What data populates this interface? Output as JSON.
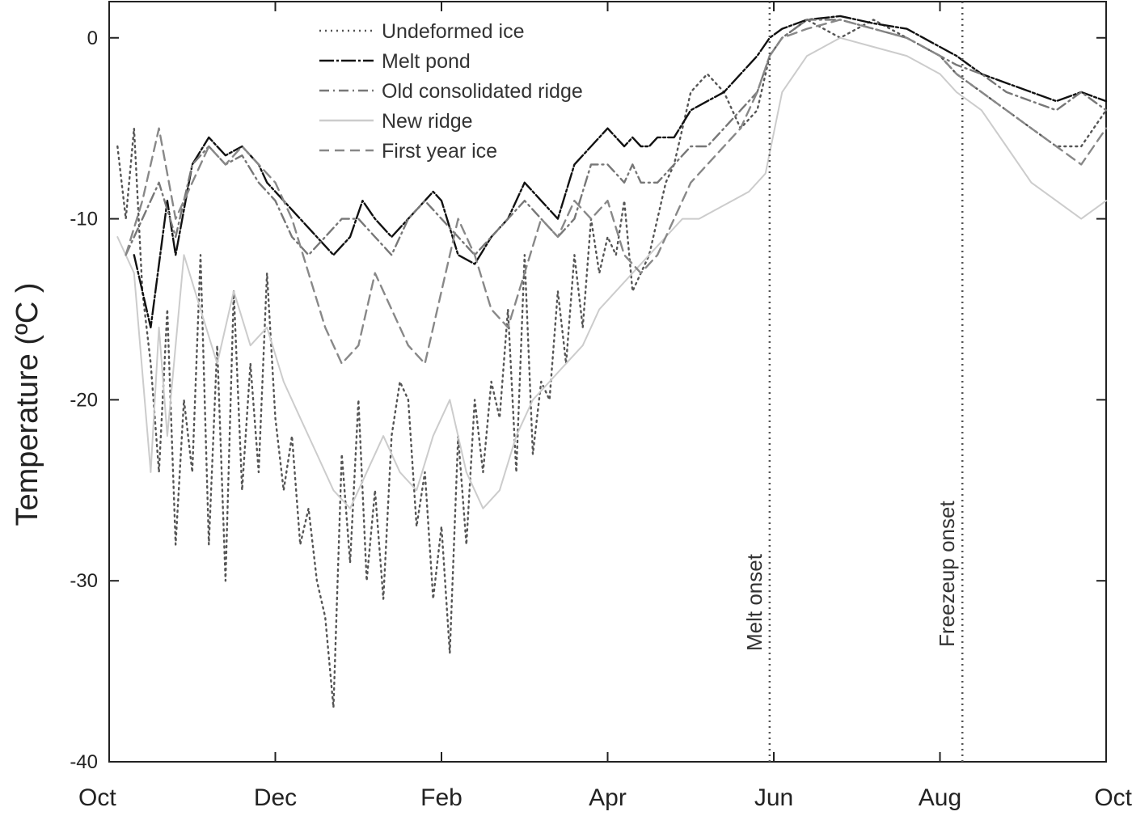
{
  "chart_data": {
    "type": "line",
    "title": "",
    "xlabel": "",
    "ylabel": "Temperature (ºC )",
    "ylim": [
      -40,
      2
    ],
    "xlim": [
      "Oct",
      "Oct"
    ],
    "x_ticks": [
      "Oct",
      "Dec",
      "Feb",
      "Apr",
      "Jun",
      "Aug",
      "Oct"
    ],
    "y_ticks": [
      0,
      -10,
      -20,
      -30,
      -40
    ],
    "x_unit": "months since start of October",
    "legend_position": "top-center",
    "grid": false,
    "annotations": [
      {
        "text": "Melt onset",
        "x": 7.95,
        "line_style": "dotted"
      },
      {
        "text": "Freezeup onset",
        "x": 10.27,
        "line_style": "dotted"
      }
    ],
    "series": [
      {
        "name": "Undeformed  ice",
        "style": "dotted",
        "color": "#555555",
        "x": [
          0.1,
          0.2,
          0.3,
          0.4,
          0.5,
          0.6,
          0.7,
          0.8,
          0.9,
          1.0,
          1.1,
          1.2,
          1.3,
          1.4,
          1.5,
          1.6,
          1.7,
          1.8,
          1.9,
          2.0,
          2.1,
          2.2,
          2.3,
          2.4,
          2.5,
          2.6,
          2.7,
          2.8,
          2.9,
          3.0,
          3.1,
          3.2,
          3.3,
          3.4,
          3.5,
          3.6,
          3.7,
          3.8,
          3.9,
          4.0,
          4.1,
          4.2,
          4.3,
          4.4,
          4.5,
          4.6,
          4.7,
          4.8,
          4.9,
          5.0,
          5.1,
          5.2,
          5.3,
          5.4,
          5.5,
          5.6,
          5.7,
          5.8,
          5.9,
          6.0,
          6.1,
          6.2,
          6.3,
          6.4,
          6.5,
          6.6,
          6.7,
          6.8,
          6.9,
          7.0,
          7.2,
          7.4,
          7.6,
          7.8,
          7.95,
          8.1,
          8.4,
          8.8,
          9.2,
          9.6,
          10.0,
          10.2,
          10.5,
          10.8,
          11.1,
          11.4,
          11.7,
          12.0
        ],
        "y": [
          -6,
          -10,
          -5,
          -14,
          -18,
          -24,
          -15,
          -28,
          -20,
          -24,
          -12,
          -28,
          -17,
          -30,
          -14,
          -25,
          -18,
          -24,
          -13,
          -21,
          -25,
          -22,
          -28,
          -26,
          -30,
          -32,
          -37,
          -23,
          -29,
          -20,
          -30,
          -25,
          -31,
          -22,
          -19,
          -20,
          -27,
          -24,
          -31,
          -27,
          -34,
          -22,
          -28,
          -20,
          -24,
          -19,
          -21,
          -15,
          -24,
          -12,
          -23,
          -19,
          -20,
          -14,
          -18,
          -12,
          -16,
          -10,
          -13,
          -11,
          -12,
          -9,
          -14,
          -13,
          -12,
          -10,
          -8,
          -7,
          -5,
          -3,
          -2,
          -3,
          -5,
          -4,
          -1,
          0,
          1,
          0,
          1,
          0,
          -1,
          -2,
          -3,
          -4,
          -5,
          -6,
          -6,
          -4
        ]
      },
      {
        "name": "Melt pond",
        "style": "solid-dash-dot",
        "color": "#111111",
        "x": [
          0.3,
          0.5,
          0.7,
          0.8,
          1.0,
          1.2,
          1.4,
          1.6,
          1.8,
          1.9,
          2.1,
          2.3,
          2.5,
          2.7,
          2.9,
          3.05,
          3.2,
          3.4,
          3.6,
          3.8,
          3.9,
          4.0,
          4.2,
          4.4,
          4.6,
          4.8,
          5.0,
          5.2,
          5.4,
          5.6,
          5.8,
          6.0,
          6.2,
          6.3,
          6.4,
          6.5,
          6.6,
          6.8,
          7.0,
          7.2,
          7.4,
          7.6,
          7.8,
          7.95,
          8.1,
          8.4,
          8.8,
          9.2,
          9.6,
          10.0,
          10.2,
          10.5,
          10.8,
          11.1,
          11.4,
          11.7,
          12.0
        ],
        "y": [
          -12,
          -16,
          -9,
          -12,
          -7,
          -5.5,
          -6.5,
          -6,
          -7,
          -8,
          -9,
          -10,
          -11,
          -12,
          -11,
          -9,
          -10,
          -11,
          -10,
          -9,
          -8.5,
          -9,
          -12,
          -12.5,
          -11,
          -10,
          -8,
          -9,
          -10,
          -7,
          -6,
          -5,
          -6,
          -5.5,
          -6,
          -6,
          -5.5,
          -5.5,
          -4,
          -3.5,
          -3,
          -2,
          -1,
          0,
          0.5,
          1,
          1.2,
          0.8,
          0.5,
          -0.5,
          -1,
          -2,
          -2.5,
          -3,
          -3.5,
          -3,
          -3.5
        ]
      },
      {
        "name": "Old consolidated ridge",
        "style": "dash-dot",
        "color": "#777777",
        "x": [
          0.2,
          0.4,
          0.6,
          0.8,
          1.0,
          1.2,
          1.4,
          1.6,
          1.8,
          2.0,
          2.2,
          2.4,
          2.6,
          2.8,
          3.0,
          3.2,
          3.4,
          3.6,
          3.8,
          4.0,
          4.2,
          4.4,
          4.6,
          4.8,
          5.0,
          5.2,
          5.4,
          5.6,
          5.8,
          6.0,
          6.2,
          6.3,
          6.4,
          6.5,
          6.6,
          6.8,
          7.0,
          7.2,
          7.4,
          7.6,
          7.8,
          7.95,
          8.1,
          8.4,
          8.8,
          9.2,
          9.6,
          10.0,
          10.2,
          10.5,
          10.8,
          11.1,
          11.4,
          11.7,
          12.0
        ],
        "y": [
          -12,
          -10,
          -8,
          -11,
          -7,
          -6,
          -7,
          -6.5,
          -8,
          -9,
          -11,
          -12,
          -11,
          -10,
          -10,
          -11,
          -12,
          -10,
          -9,
          -10,
          -11,
          -12,
          -11,
          -10,
          -9,
          -10,
          -11,
          -10,
          -7,
          -7,
          -8,
          -7,
          -8,
          -8,
          -8,
          -7,
          -6,
          -6,
          -5,
          -4,
          -3,
          -1,
          0,
          1,
          1,
          0.5,
          0,
          -1,
          -1.5,
          -2,
          -3,
          -3.5,
          -4,
          -3,
          -4
        ]
      },
      {
        "name": "New  ridge",
        "style": "solid",
        "color": "#cccccc",
        "x": [
          0.1,
          0.3,
          0.5,
          0.6,
          0.7,
          0.9,
          1.1,
          1.3,
          1.5,
          1.7,
          1.9,
          2.1,
          2.3,
          2.5,
          2.7,
          2.9,
          3.1,
          3.3,
          3.5,
          3.7,
          3.9,
          4.1,
          4.3,
          4.5,
          4.7,
          4.9,
          5.1,
          5.3,
          5.5,
          5.7,
          5.9,
          6.1,
          6.3,
          6.5,
          6.7,
          6.9,
          7.1,
          7.3,
          7.5,
          7.7,
          7.9,
          8.1,
          8.4,
          8.8,
          9.2,
          9.6,
          10.0,
          10.2,
          10.5,
          10.8,
          11.1,
          11.4,
          11.7,
          12.0
        ],
        "y": [
          -11,
          -13,
          -24,
          -16,
          -22,
          -12,
          -15,
          -18,
          -14,
          -17,
          -16,
          -19,
          -21,
          -23,
          -25,
          -26,
          -24,
          -22,
          -24,
          -25,
          -22,
          -20,
          -24,
          -26,
          -25,
          -22,
          -20,
          -19,
          -18,
          -17,
          -15,
          -14,
          -13,
          -12,
          -11,
          -10,
          -10,
          -9.5,
          -9,
          -8.5,
          -7.5,
          -3,
          -1,
          0,
          -0.5,
          -1,
          -2,
          -3,
          -4,
          -6,
          -8,
          -9,
          -10,
          -9
        ]
      },
      {
        "name": "First year ice",
        "style": "dashed",
        "color": "#888888",
        "x": [
          0.2,
          0.4,
          0.6,
          0.8,
          1.0,
          1.2,
          1.4,
          1.6,
          1.8,
          2.0,
          2.2,
          2.4,
          2.6,
          2.8,
          3.0,
          3.2,
          3.4,
          3.6,
          3.8,
          4.0,
          4.2,
          4.4,
          4.6,
          4.8,
          5.0,
          5.2,
          5.4,
          5.6,
          5.8,
          6.0,
          6.2,
          6.4,
          6.6,
          6.8,
          7.0,
          7.2,
          7.4,
          7.6,
          7.8,
          7.95,
          8.1,
          8.4,
          8.8,
          9.2,
          9.6,
          10.0,
          10.2,
          10.5,
          10.8,
          11.1,
          11.4,
          11.7,
          12.0
        ],
        "y": [
          -12,
          -9,
          -5,
          -10,
          -8,
          -6,
          -7,
          -6,
          -7,
          -8,
          -10,
          -13,
          -16,
          -18,
          -17,
          -13,
          -15,
          -17,
          -18,
          -14,
          -10,
          -12,
          -15,
          -16,
          -13,
          -10,
          -11,
          -9,
          -10,
          -9,
          -12,
          -13,
          -12,
          -10,
          -8,
          -7,
          -6,
          -5,
          -3,
          -1,
          0,
          0.5,
          1,
          0.5,
          0,
          -1,
          -2,
          -3,
          -4,
          -5,
          -6,
          -7,
          -5
        ]
      }
    ]
  }
}
